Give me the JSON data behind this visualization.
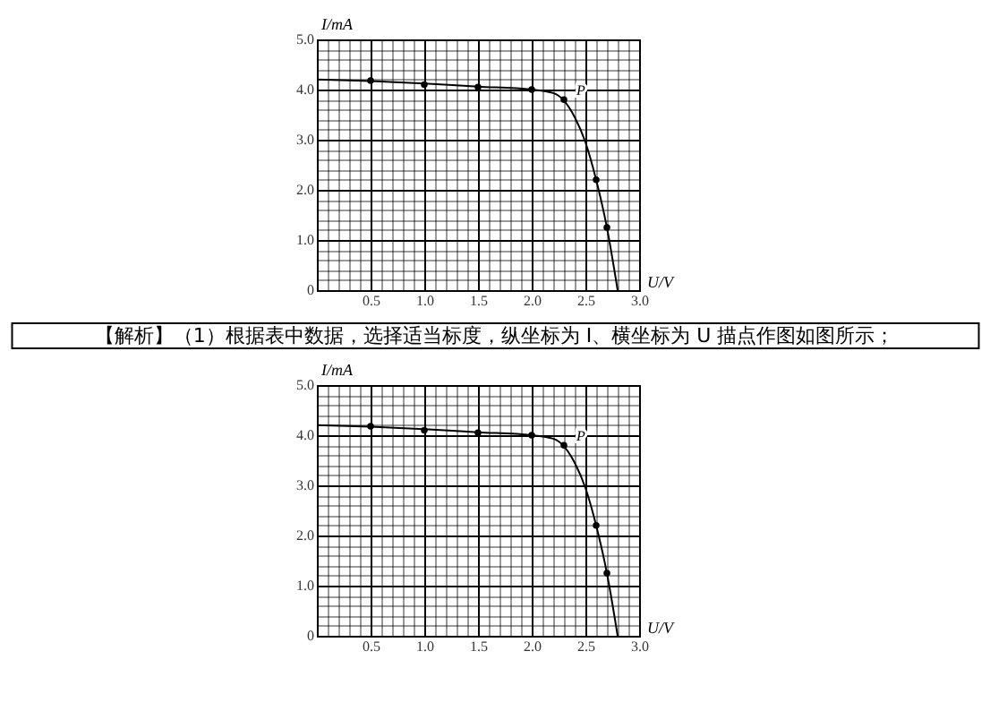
{
  "chart_data": [
    {
      "type": "line",
      "xlabel": "U/V",
      "ylabel": "I/mA",
      "xlim": [
        0,
        3.0
      ],
      "ylim": [
        0,
        5.0
      ],
      "grid": true,
      "xticks": [
        {
          "value": 0.1,
          "label": null
        },
        {
          "value": 0.2,
          "label": null
        },
        {
          "value": 0.3,
          "label": null
        },
        {
          "value": 0.4,
          "label": null
        },
        {
          "value": 0.5,
          "label": "0.5"
        },
        {
          "value": 0.6,
          "label": null
        },
        {
          "value": 0.7,
          "label": null
        },
        {
          "value": 0.8,
          "label": null
        },
        {
          "value": 0.9,
          "label": null
        },
        {
          "value": 1,
          "label": "1.0"
        },
        {
          "value": 1.1,
          "label": null
        },
        {
          "value": 1.2,
          "label": null
        },
        {
          "value": 1.3,
          "label": null
        },
        {
          "value": 1.4,
          "label": null
        },
        {
          "value": 1.5,
          "label": "1.5"
        },
        {
          "value": 1.6,
          "label": null
        },
        {
          "value": 1.7,
          "label": null
        },
        {
          "value": 1.8,
          "label": null
        },
        {
          "value": 1.9,
          "label": null
        },
        {
          "value": 2,
          "label": "2.0"
        },
        {
          "value": 2.1,
          "label": null
        },
        {
          "value": 2.2,
          "label": null
        },
        {
          "value": 2.3,
          "label": null
        },
        {
          "value": 2.4,
          "label": null
        },
        {
          "value": 2.5,
          "label": "2.5"
        },
        {
          "value": 2.6,
          "label": null
        },
        {
          "value": 2.7,
          "label": null
        },
        {
          "value": 2.8,
          "label": null
        },
        {
          "value": 2.9,
          "label": null
        },
        {
          "value": 3,
          "label": "3.0"
        }
      ],
      "yticks": [
        0,
        {
          "value": 0.2,
          "label": null
        },
        {
          "value": 0.4,
          "label": null
        },
        {
          "value": 0.6,
          "label": null
        },
        {
          "value": 0.8,
          "label": null
        },
        {
          "value": 1,
          "label": "1.0"
        },
        {
          "value": 1.2,
          "label": null
        },
        {
          "value": 1.4,
          "label": null
        },
        {
          "value": 1.6,
          "label": null
        },
        {
          "value": 1.8,
          "label": null
        },
        {
          "value": 2,
          "label": "2.0"
        },
        {
          "value": 2.2,
          "label": null
        },
        {
          "value": 2.4,
          "label": null
        },
        {
          "value": 2.6,
          "label": null
        },
        {
          "value": 2.8,
          "label": null
        },
        {
          "value": 3,
          "label": "3.0"
        },
        {
          "value": 3.2,
          "label": null
        },
        {
          "value": 3.4,
          "label": null
        },
        {
          "value": 3.6,
          "label": null
        },
        {
          "value": 3.8,
          "label": null
        },
        {
          "value": 4,
          "label": "4.0"
        },
        {
          "value": 4.2,
          "label": null
        },
        {
          "value": 4.4,
          "label": null
        },
        {
          "value": 4.6,
          "label": null
        },
        {
          "value": 4.8,
          "label": null
        },
        {
          "value": 5,
          "label": "5.0"
        }
      ],
      "series": [
        {
          "type": "line",
          "color": "#000000",
          "line_style": "solid",
          "x": [
            0,
            0.5,
            1.0,
            1.5,
            2.0,
            2.2,
            2.3,
            2.4,
            2.5,
            2.6,
            2.7,
            2.8
          ],
          "values": [
            4.2,
            4.17,
            4.12,
            4.06,
            4.0,
            3.93,
            3.78,
            3.45,
            2.95,
            2.2,
            1.25,
            0
          ]
        },
        {
          "type": "scatter",
          "color": "#000000",
          "marker": "circle",
          "x": [
            0.5,
            1.0,
            1.5,
            2.0,
            2.3,
            2.6,
            2.7
          ],
          "values": [
            4.18,
            4.1,
            4.05,
            4.0,
            3.8,
            2.2,
            1.25
          ]
        }
      ],
      "annotations": [
        {
          "text": "P",
          "x": 2.4,
          "y": 3.85
        }
      ]
    },
    {
      "type": "line",
      "xlabel": "U/V",
      "ylabel": "I/mA",
      "xlim": [
        0,
        3.0
      ],
      "ylim": [
        0,
        5.0
      ],
      "grid": true,
      "xticks": [
        {
          "value": 0.1,
          "label": null
        },
        {
          "value": 0.2,
          "label": null
        },
        {
          "value": 0.3,
          "label": null
        },
        {
          "value": 0.4,
          "label": null
        },
        {
          "value": 0.5,
          "label": "0.5"
        },
        {
          "value": 0.6,
          "label": null
        },
        {
          "value": 0.7,
          "label": null
        },
        {
          "value": 0.8,
          "label": null
        },
        {
          "value": 0.9,
          "label": null
        },
        {
          "value": 1,
          "label": "1.0"
        },
        {
          "value": 1.1,
          "label": null
        },
        {
          "value": 1.2,
          "label": null
        },
        {
          "value": 1.3,
          "label": null
        },
        {
          "value": 1.4,
          "label": null
        },
        {
          "value": 1.5,
          "label": "1.5"
        },
        {
          "value": 1.6,
          "label": null
        },
        {
          "value": 1.7,
          "label": null
        },
        {
          "value": 1.8,
          "label": null
        },
        {
          "value": 1.9,
          "label": null
        },
        {
          "value": 2,
          "label": "2.0"
        },
        {
          "value": 2.1,
          "label": null
        },
        {
          "value": 2.2,
          "label": null
        },
        {
          "value": 2.3,
          "label": null
        },
        {
          "value": 2.4,
          "label": null
        },
        {
          "value": 2.5,
          "label": "2.5"
        },
        {
          "value": 2.6,
          "label": null
        },
        {
          "value": 2.7,
          "label": null
        },
        {
          "value": 2.8,
          "label": null
        },
        {
          "value": 2.9,
          "label": null
        },
        {
          "value": 3,
          "label": "3.0"
        }
      ],
      "yticks": [
        0,
        {
          "value": 0.2,
          "label": null
        },
        {
          "value": 0.4,
          "label": null
        },
        {
          "value": 0.6,
          "label": null
        },
        {
          "value": 0.8,
          "label": null
        },
        {
          "value": 1,
          "label": "1.0"
        },
        {
          "value": 1.2,
          "label": null
        },
        {
          "value": 1.4,
          "label": null
        },
        {
          "value": 1.6,
          "label": null
        },
        {
          "value": 1.8,
          "label": null
        },
        {
          "value": 2,
          "label": "2.0"
        },
        {
          "value": 2.2,
          "label": null
        },
        {
          "value": 2.4,
          "label": null
        },
        {
          "value": 2.6,
          "label": null
        },
        {
          "value": 2.8,
          "label": null
        },
        {
          "value": 3,
          "label": "3.0"
        },
        {
          "value": 3.2,
          "label": null
        },
        {
          "value": 3.4,
          "label": null
        },
        {
          "value": 3.6,
          "label": null
        },
        {
          "value": 3.8,
          "label": null
        },
        {
          "value": 4,
          "label": "4.0"
        },
        {
          "value": 4.2,
          "label": null
        },
        {
          "value": 4.4,
          "label": null
        },
        {
          "value": 4.6,
          "label": null
        },
        {
          "value": 4.8,
          "label": null
        },
        {
          "value": 5,
          "label": "5.0"
        }
      ],
      "series": [
        {
          "type": "line",
          "color": "#000000",
          "line_style": "solid",
          "x": [
            0,
            0.5,
            1.0,
            1.5,
            2.0,
            2.2,
            2.3,
            2.4,
            2.5,
            2.6,
            2.7,
            2.8
          ],
          "values": [
            4.2,
            4.17,
            4.12,
            4.06,
            4.0,
            3.93,
            3.78,
            3.45,
            2.95,
            2.2,
            1.25,
            0
          ]
        },
        {
          "type": "scatter",
          "color": "#000000",
          "marker": "circle",
          "x": [
            0.5,
            1.0,
            1.5,
            2.0,
            2.3,
            2.6,
            2.7
          ],
          "values": [
            4.18,
            4.1,
            4.05,
            4.0,
            3.8,
            2.2,
            1.25
          ]
        }
      ],
      "annotations": [
        "【解析】（1）根据表中数据，选择适当标度，纵坐标为 I、横坐标为 U 描点作图如图所示；",
        {
          "text": "P",
          "x": 2.4,
          "y": 3.85
        }
      ]
    }
  ]
}
